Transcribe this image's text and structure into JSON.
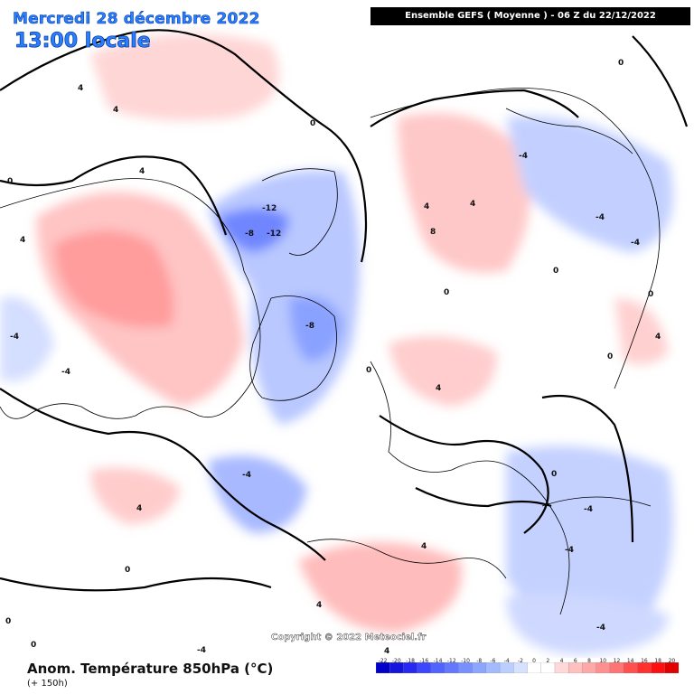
{
  "header": {
    "date": "Mercredi 28 décembre 2022",
    "time": "13:00 locale",
    "banner": "Ensemble GEFS  ( Moyenne )  -  06 Z du 22/12/2022"
  },
  "copyright": "Copyright © 2022 Meteociel.fr",
  "footer": {
    "variable": "Anom. Température 850hPa (°C)",
    "lead": "(+ 150h)"
  },
  "legend": {
    "ticks": [
      "-22",
      "-20",
      "-18",
      "-16",
      "-14",
      "-12",
      "-10",
      "-8",
      "-6",
      "-4",
      "-2",
      "0",
      "2",
      "4",
      "6",
      "8",
      "10",
      "12",
      "14",
      "16",
      "18",
      "20"
    ],
    "colors": [
      "#0000c8",
      "#1414dc",
      "#2828f0",
      "#3c46ff",
      "#5064ff",
      "#6478ff",
      "#7890ff",
      "#8ca6ff",
      "#a4baff",
      "#bccdff",
      "#d6e0ff",
      "#ffffff",
      "#ffffff",
      "#ffd8d8",
      "#ffc0c0",
      "#ffa8a8",
      "#ff9090",
      "#ff7474",
      "#ff5050",
      "#ff3030",
      "#ff1010",
      "#e00000"
    ]
  },
  "contour_labels": [
    "4",
    "4",
    "4",
    "4",
    "0",
    "0",
    "0",
    "-4",
    "-4",
    "-8",
    "-12",
    "-12",
    "-8",
    "-4",
    "4",
    "4",
    "4",
    "8",
    "0",
    "-4",
    "0",
    "0",
    "4",
    "4",
    "0",
    "0",
    "-4",
    "-4",
    "-4",
    "0",
    "0",
    "4",
    "0",
    "-4",
    "-4",
    "0",
    "4",
    "-4",
    "4"
  ]
}
